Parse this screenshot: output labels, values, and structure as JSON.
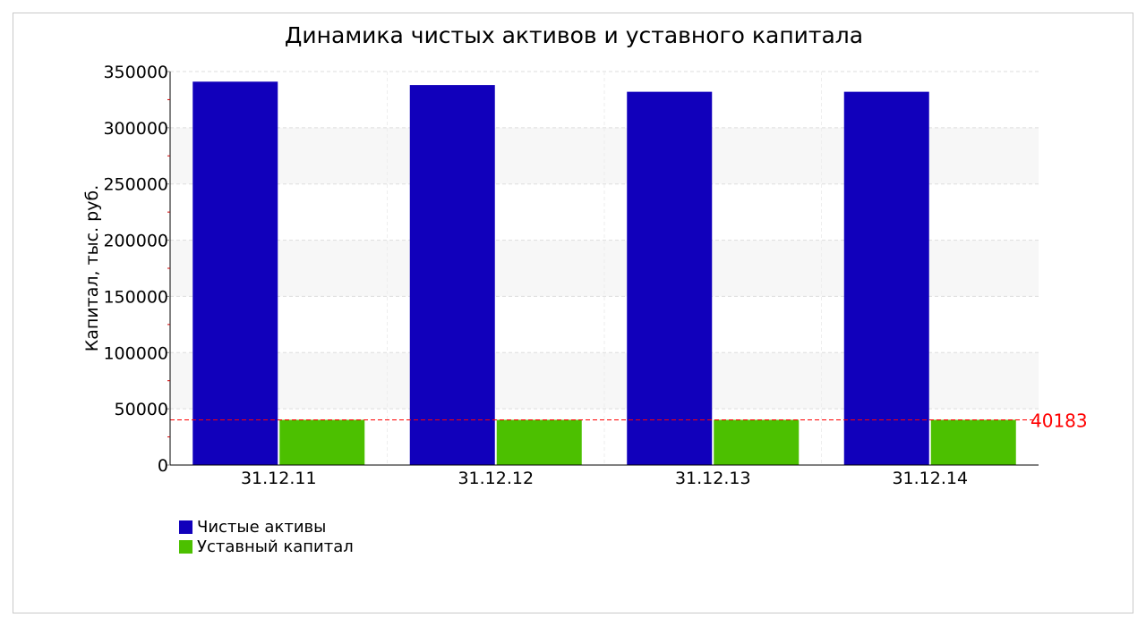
{
  "chart_data": {
    "type": "bar",
    "title": "Динамика чистых активов и уставного капитала",
    "xlabel": "",
    "ylabel": "Капитал, тыс. руб.",
    "categories": [
      "31.12.11",
      "31.12.12",
      "31.12.13",
      "31.12.14"
    ],
    "series": [
      {
        "name": "Чистые активы",
        "values": [
          341000,
          338000,
          332000,
          332000
        ],
        "color": "#1100bb"
      },
      {
        "name": "Уставный капитал",
        "values": [
          40183,
          40183,
          40183,
          40183
        ],
        "color": "#4cc000"
      }
    ],
    "ylim": [
      0,
      350000
    ],
    "yticks": [
      "0",
      "50000",
      "100000",
      "150000",
      "200000",
      "250000",
      "300000",
      "350000"
    ],
    "reference_line": {
      "value": 40183,
      "label": "40183",
      "color": "#ff0000"
    },
    "grid": true,
    "legend_position": "bottom-left"
  }
}
